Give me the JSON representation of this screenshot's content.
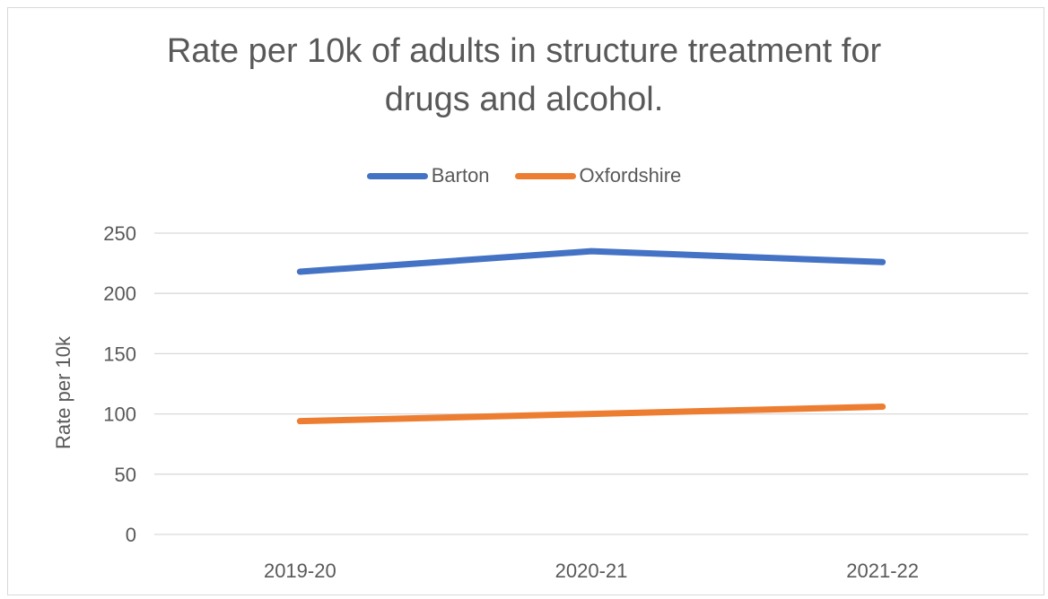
{
  "chart_data": {
    "type": "line",
    "title_lines": [
      "Rate per 10k of adults in structure treatment for",
      "drugs and alcohol."
    ],
    "xlabel": "",
    "ylabel": "Rate per 10k",
    "categories": [
      "2019-20",
      "2020-21",
      "2021-22"
    ],
    "yticks": [
      0,
      50,
      100,
      150,
      200,
      250
    ],
    "ylim": [
      0,
      250
    ],
    "grid": "horizontal",
    "legend_position": "top",
    "series": [
      {
        "name": "Barton",
        "color": "#4472c4",
        "values": [
          218,
          235,
          226
        ]
      },
      {
        "name": "Oxfordshire",
        "color": "#ed7d31",
        "values": [
          94,
          100,
          106
        ]
      }
    ]
  }
}
